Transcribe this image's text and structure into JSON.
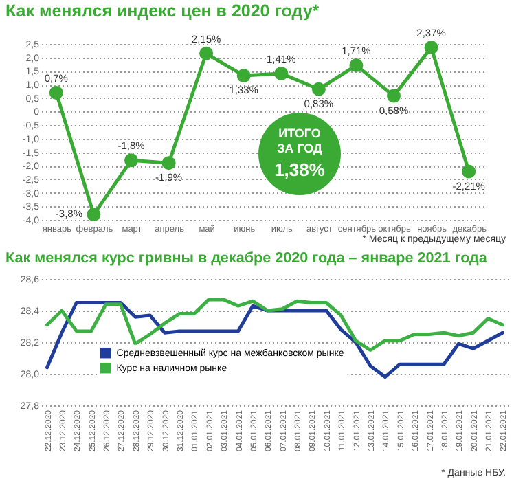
{
  "chart_data": [
    {
      "type": "line",
      "title": "Как менялся индекс цен в 2020 году*",
      "categories": [
        "январь",
        "февраль",
        "март",
        "апрель",
        "май",
        "июнь",
        "июль",
        "август",
        "сентябрь",
        "октябрь",
        "ноябрь",
        "декабрь"
      ],
      "series": [
        {
          "color": "#3aaa35",
          "values": [
            0.7,
            -3.8,
            -1.8,
            -1.9,
            2.15,
            1.33,
            1.41,
            0.83,
            1.71,
            0.58,
            2.37,
            -2.21
          ],
          "value_labels": [
            "0,7%",
            "-3,8%",
            "-1,8%",
            "-1,9%",
            "2,15%",
            "1,33%",
            "1,41%",
            "0,83%",
            "1,71%",
            "0,58%",
            "2,37%",
            "-2,21%"
          ]
        }
      ],
      "ylim": [
        -4.0,
        2.5
      ],
      "yticks": [
        {
          "value": -4.0,
          "label": "-4,0"
        },
        {
          "value": -3.5,
          "label": "-3,5"
        },
        {
          "value": -3.0,
          "label": "-3,0"
        },
        {
          "value": -2.5,
          "label": "-2,5"
        },
        {
          "value": -2.0,
          "label": "-2,0"
        },
        {
          "value": -1.5,
          "label": "-1,5"
        },
        {
          "value": -1.0,
          "label": "-1,0"
        },
        {
          "value": -0.5,
          "label": "-0,5"
        },
        0,
        {
          "value": 0.5,
          "label": "0,5"
        },
        {
          "value": 1.0,
          "label": "1,0"
        },
        {
          "value": 1.5,
          "label": "1,5"
        },
        {
          "value": 2.0,
          "label": "2,0"
        },
        {
          "value": 2.5,
          "label": "2,5"
        }
      ],
      "grid": "y",
      "marker": "circle",
      "line_style": "solid",
      "legend": false,
      "annotations": [
        "ИТОГО",
        "ЗА ГОД",
        "1,38%",
        "* Месяц к предыдущему месяцу"
      ]
    },
    {
      "type": "line",
      "title": "Как менялся курс гривны в декабре 2020 года – январе 2021 года",
      "categories": [
        "22.12.2020",
        "23.12.2020",
        "24.12.2020",
        "25.12.2020",
        "26.12.2020",
        "27.12.2020",
        "28.12.2020",
        "29.12.2020",
        "30.12.2020",
        "31.12.2020",
        "01.01.2021",
        "02.01.2021",
        "03.01.2021",
        "04.01.2021",
        "05.01.2021",
        "06.01.2021",
        "07.01.2021",
        "08.01.2021",
        "09.01.2021",
        "10.01.2021",
        "11.01.2021",
        "12.01.2021",
        "13.01.2021",
        "14.01.2021",
        "15.01.2021",
        "16.01.2021",
        "17.01.2021",
        "18.01.2021",
        "19.01.2021",
        "20.01.2021",
        "21.01.2021",
        "22.01.2021"
      ],
      "series": [
        {
          "name": "Средневзвешенный курс на межбанковском рынке",
          "color": "#1f3d99",
          "values": [
            28.04,
            28.26,
            28.45,
            28.45,
            28.45,
            28.45,
            28.36,
            28.37,
            28.26,
            28.27,
            28.27,
            28.27,
            28.27,
            28.27,
            28.43,
            28.4,
            28.4,
            28.4,
            28.4,
            28.4,
            28.28,
            28.2,
            28.05,
            27.98,
            28.06,
            28.06,
            28.06,
            28.06,
            28.19,
            28.16,
            28.21,
            28.26
          ]
        },
        {
          "name": "Курс на наличном рынке",
          "color": "#3cb043",
          "values": [
            28.31,
            28.4,
            28.27,
            28.27,
            28.44,
            28.44,
            28.19,
            28.25,
            28.32,
            28.38,
            28.38,
            28.47,
            28.47,
            28.43,
            28.46,
            28.4,
            28.41,
            28.46,
            28.45,
            28.45,
            28.37,
            28.21,
            28.15,
            28.21,
            28.21,
            28.25,
            28.25,
            28.26,
            28.24,
            28.26,
            28.35,
            28.31
          ]
        }
      ],
      "ylim": [
        27.8,
        28.6
      ],
      "yticks": [
        {
          "value": 27.8,
          "label": "27,8"
        },
        {
          "value": 28.0,
          "label": "28,0"
        },
        {
          "value": 28.2,
          "label": "28,2"
        },
        {
          "value": 28.4,
          "label": "28,4"
        },
        {
          "value": 28.6,
          "label": "28,6"
        }
      ],
      "grid": "y",
      "line_style": "solid",
      "legend": "left",
      "annotations": [
        "* Данные НБУ."
      ]
    }
  ]
}
